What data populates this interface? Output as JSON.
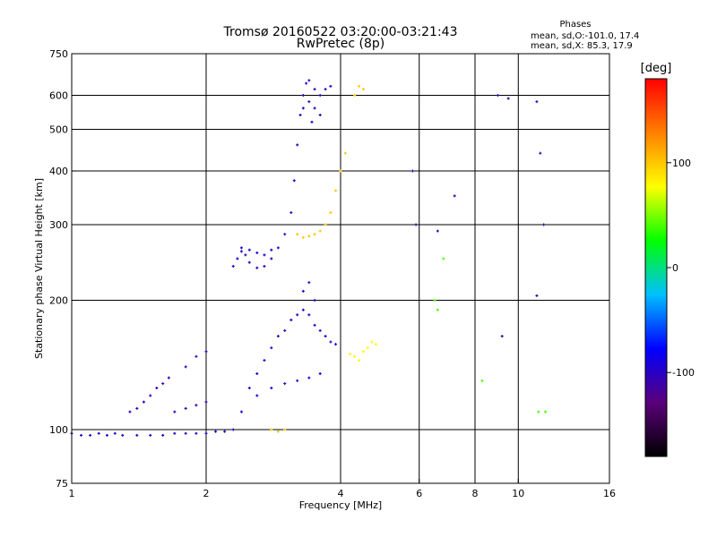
{
  "chart_data": {
    "type": "scatter",
    "title": "Tromsø 20160522 03:20:00-03:21:43",
    "subtitle": "RwPretec (8p)",
    "xlabel": "Frequency [MHz]",
    "ylabel": "Stationary phase Virtual Height [km]",
    "xscale": "log",
    "yscale": "log",
    "xlim": [
      1,
      16
    ],
    "ylim": [
      75,
      750
    ],
    "x_ticks": [
      1,
      2,
      4,
      6,
      8,
      10,
      16
    ],
    "x_tick_labels": [
      "1",
      "2",
      "4",
      "6",
      "8",
      "10",
      "16"
    ],
    "y_ticks": [
      75,
      100,
      200,
      300,
      400,
      500,
      600,
      750
    ],
    "y_tick_labels": [
      "75",
      "100",
      "200",
      "300",
      "400",
      "500",
      "600",
      "750"
    ],
    "grid": true,
    "phase_stats": {
      "heading": "Phases",
      "line_o": "mean, sd,O:-101.0, 17.4",
      "line_x": "mean, sd,X:  85.3, 17.9"
    },
    "colorbar": {
      "label": "[deg]",
      "range": [
        -180,
        180
      ],
      "ticks": [
        100,
        0,
        -100
      ],
      "tick_labels": [
        "100",
        "0",
        "-100"
      ],
      "colors": [
        "#000000",
        "#5a007a",
        "#0000ff",
        "#00c0ff",
        "#00ff00",
        "#ffff00",
        "#ff8000",
        "#ff0000"
      ]
    },
    "series": [
      {
        "phase": -100,
        "points": [
          [
            1.0,
            98
          ],
          [
            1.05,
            97
          ],
          [
            1.1,
            97
          ],
          [
            1.15,
            98
          ],
          [
            1.2,
            97
          ],
          [
            1.25,
            98
          ],
          [
            1.3,
            97
          ],
          [
            1.4,
            97
          ],
          [
            1.5,
            97
          ],
          [
            1.6,
            97
          ],
          [
            1.7,
            98
          ],
          [
            1.8,
            98
          ],
          [
            1.9,
            98
          ],
          [
            2.0,
            98
          ],
          [
            2.1,
            99
          ],
          [
            2.2,
            99
          ],
          [
            2.3,
            100
          ]
        ]
      },
      {
        "phase": -105,
        "points": [
          [
            1.35,
            110
          ],
          [
            1.4,
            112
          ],
          [
            1.45,
            116
          ],
          [
            1.5,
            120
          ],
          [
            1.55,
            125
          ],
          [
            1.6,
            128
          ],
          [
            1.65,
            132
          ],
          [
            1.8,
            140
          ],
          [
            1.9,
            148
          ],
          [
            2.0,
            152
          ],
          [
            1.7,
            110
          ],
          [
            1.8,
            112
          ],
          [
            1.9,
            114
          ],
          [
            2.0,
            116
          ]
        ]
      },
      {
        "phase": -100,
        "points": [
          [
            2.3,
            240
          ],
          [
            2.35,
            250
          ],
          [
            2.4,
            260
          ],
          [
            2.45,
            255
          ],
          [
            2.5,
            245
          ],
          [
            2.6,
            238
          ],
          [
            2.7,
            240
          ],
          [
            2.8,
            250
          ],
          [
            2.9,
            265
          ],
          [
            3.0,
            285
          ],
          [
            3.1,
            320
          ],
          [
            3.15,
            380
          ],
          [
            3.2,
            460
          ],
          [
            3.25,
            540
          ],
          [
            3.3,
            600
          ],
          [
            3.35,
            640
          ],
          [
            3.4,
            650
          ],
          [
            3.5,
            620
          ],
          [
            3.6,
            600
          ],
          [
            3.7,
            620
          ],
          [
            3.8,
            630
          ],
          [
            3.3,
            560
          ],
          [
            3.4,
            580
          ],
          [
            3.5,
            560
          ],
          [
            3.6,
            540
          ],
          [
            3.45,
            520
          ]
        ]
      },
      {
        "phase": -90,
        "points": [
          [
            2.4,
            265
          ],
          [
            2.5,
            262
          ],
          [
            2.6,
            258
          ],
          [
            2.7,
            255
          ],
          [
            2.8,
            262
          ]
        ]
      },
      {
        "phase": -95,
        "points": [
          [
            2.4,
            110
          ],
          [
            2.5,
            125
          ],
          [
            2.6,
            135
          ],
          [
            2.7,
            145
          ],
          [
            2.8,
            155
          ],
          [
            2.9,
            165
          ],
          [
            3.0,
            170
          ],
          [
            3.1,
            180
          ],
          [
            3.2,
            185
          ],
          [
            3.3,
            190
          ],
          [
            3.4,
            185
          ],
          [
            3.5,
            175
          ],
          [
            3.6,
            170
          ],
          [
            3.7,
            165
          ],
          [
            3.8,
            160
          ],
          [
            3.9,
            158
          ],
          [
            2.6,
            120
          ],
          [
            2.8,
            125
          ],
          [
            3.0,
            128
          ],
          [
            3.2,
            130
          ],
          [
            3.4,
            132
          ],
          [
            3.6,
            135
          ],
          [
            3.3,
            210
          ],
          [
            3.4,
            220
          ],
          [
            3.5,
            200
          ]
        ]
      },
      {
        "phase": 100,
        "points": [
          [
            3.2,
            285
          ],
          [
            3.3,
            280
          ],
          [
            3.4,
            282
          ],
          [
            3.5,
            285
          ],
          [
            3.6,
            290
          ],
          [
            3.7,
            300
          ],
          [
            3.8,
            320
          ],
          [
            3.9,
            360
          ],
          [
            4.0,
            400
          ],
          [
            4.1,
            440
          ],
          [
            4.3,
            600
          ],
          [
            4.4,
            630
          ],
          [
            4.5,
            620
          ],
          [
            2.8,
            100
          ],
          [
            2.9,
            99
          ],
          [
            3.0,
            100
          ]
        ]
      },
      {
        "phase": 80,
        "points": [
          [
            4.2,
            150
          ],
          [
            4.3,
            148
          ],
          [
            4.4,
            145
          ],
          [
            4.5,
            152
          ],
          [
            4.6,
            155
          ],
          [
            4.7,
            160
          ],
          [
            4.8,
            158
          ]
        ]
      },
      {
        "phase": -110,
        "points": [
          [
            5.8,
            400
          ],
          [
            5.9,
            300
          ],
          [
            6.6,
            290
          ],
          [
            7.2,
            350
          ],
          [
            9.0,
            600
          ],
          [
            9.5,
            590
          ],
          [
            11.0,
            580
          ],
          [
            11.2,
            440
          ],
          [
            11.4,
            300
          ],
          [
            9.2,
            165
          ],
          [
            11.0,
            205
          ]
        ]
      },
      {
        "phase": 40,
        "points": [
          [
            6.5,
            200
          ],
          [
            6.6,
            190
          ],
          [
            6.8,
            250
          ],
          [
            8.3,
            130
          ],
          [
            11.1,
            110
          ],
          [
            11.5,
            110
          ]
        ]
      }
    ]
  }
}
